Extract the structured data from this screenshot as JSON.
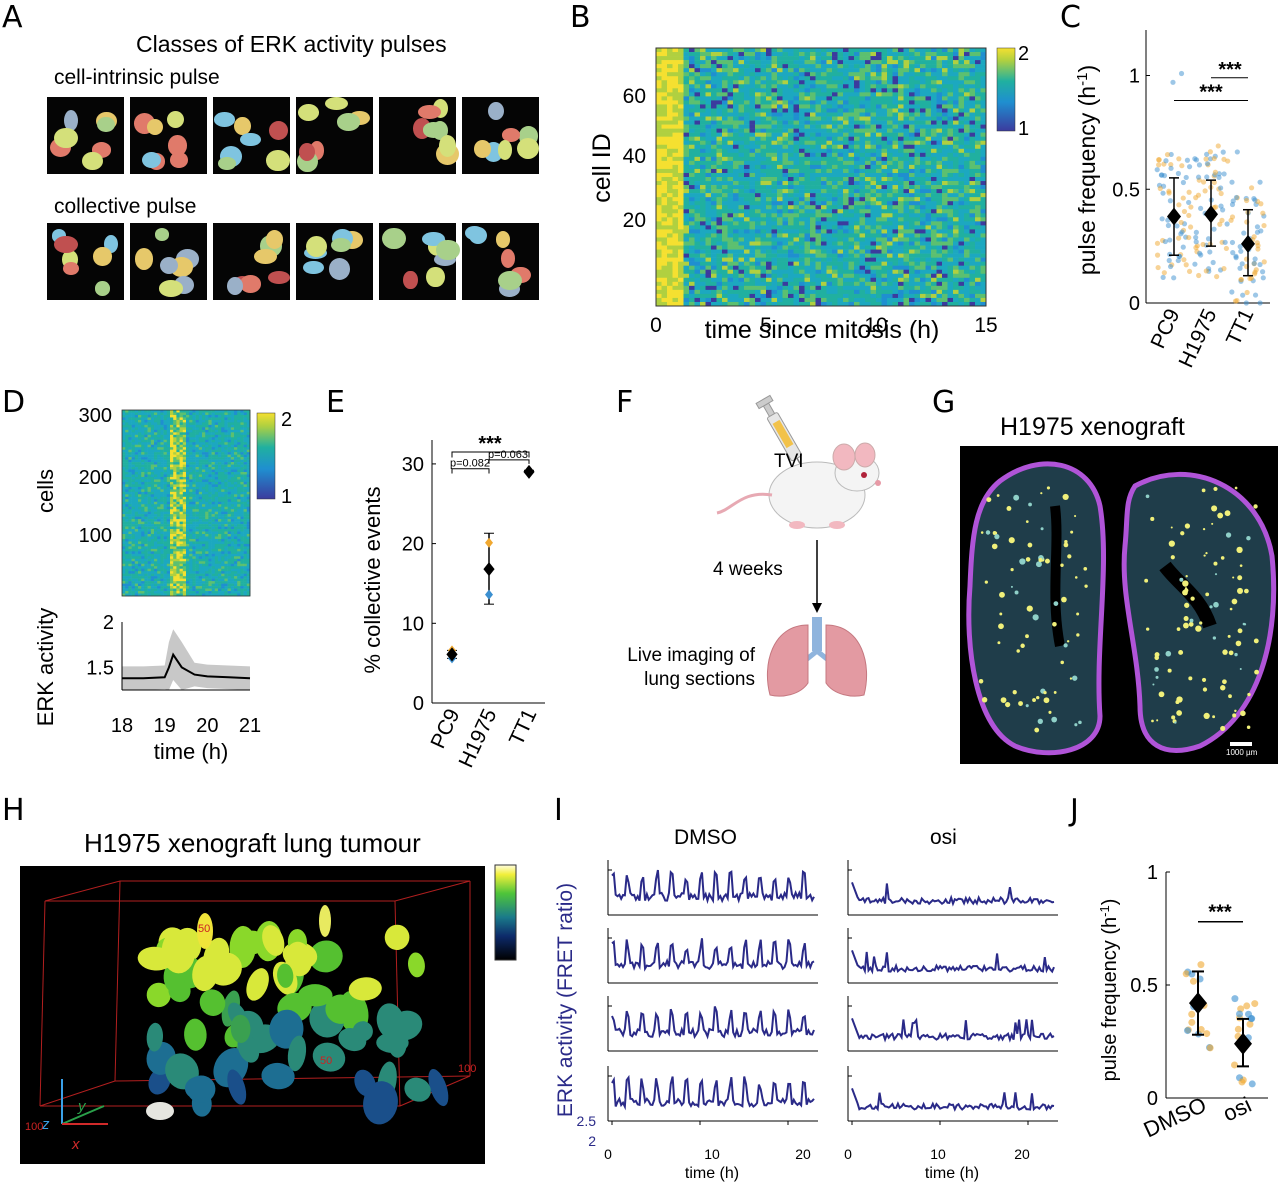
{
  "panels": [
    "A",
    "B",
    "C",
    "D",
    "E",
    "F",
    "G",
    "H",
    "I",
    "J"
  ],
  "panelA": {
    "title": "Classes of ERK activity pulses",
    "row1_label": "cell-intrinsic pulse",
    "row2_label": "collective pulse"
  },
  "panelB": {
    "ylabel": "cell ID",
    "xlabel": "time since mitosis (h)",
    "yticks": [
      "60",
      "40",
      "20"
    ],
    "xticks": [
      "0",
      "5",
      "10",
      "15"
    ],
    "cbar_ticks": [
      "2",
      "1"
    ]
  },
  "panelC": {
    "ylabel": "pulse frequency (h",
    "ylabel_sup": "-1",
    "ylabel_end": ")",
    "yticks": [
      "1",
      "0.5",
      "0"
    ],
    "sig1": "***",
    "sig2": "***"
  },
  "panelD": {
    "ylabel_top": "cells",
    "ylabel_bottom": "ERK activity",
    "xlabel": "time (h)",
    "yticks_top": [
      "300",
      "200",
      "100"
    ],
    "yticks_bottom": [
      "2",
      "1.5"
    ],
    "xticks": [
      "18",
      "19",
      "20",
      "21"
    ],
    "cbar_ticks": [
      "2",
      "1"
    ]
  },
  "panelE": {
    "ylabel": "% collective events",
    "yticks": [
      "30",
      "20",
      "10",
      "0"
    ],
    "p1": "p=0.082",
    "p2": "p=0.063",
    "sig": "***"
  },
  "panelF": {
    "tvi": "TVI",
    "weeks": "4 weeks",
    "live1": "Live imaging of",
    "live2": "lung sections"
  },
  "panelG": {
    "title": "H1975 xenograft",
    "scale": "1000 µm"
  },
  "panelH": {
    "title": "H1975 xenograft lung tumour",
    "tick50a": "50",
    "tick50b": "50",
    "tick100a": "100",
    "tick100b": "100",
    "ax_x": "x",
    "ax_y": "y",
    "ax_z": "z"
  },
  "panelI": {
    "col1": "DMSO",
    "col2": "osi",
    "ylabel": "ERK activity (FRET ratio)",
    "xlabel": "time (h)",
    "yticks": [
      "2.5",
      "2"
    ],
    "xticks": [
      "0",
      "10",
      "20"
    ]
  },
  "panelJ": {
    "ylabel": "pulse frequency (h",
    "ylabel_sup": "-1",
    "ylabel_end": ")",
    "yticks": [
      "1",
      "0.5",
      "0"
    ],
    "sig": "***"
  },
  "shared_categories": [
    "PC9",
    "H1975",
    "TT1"
  ],
  "panelJ_categories": [
    "DMSO",
    "osi"
  ],
  "colors": {
    "orange": "#f0a830",
    "blue": "#3b8fd0",
    "trace": "#2a2a88",
    "red_axis": "#cc2222"
  },
  "chart_data": [
    {
      "panel": "C",
      "type": "scatter",
      "categories": [
        "PC9",
        "H1975",
        "TT1"
      ],
      "series": [
        {
          "name": "mean",
          "values": [
            0.38,
            0.39,
            0.26
          ]
        },
        {
          "name": "sd_low",
          "values": [
            0.21,
            0.25,
            0.12
          ]
        },
        {
          "name": "sd_high",
          "values": [
            0.55,
            0.54,
            0.41
          ]
        }
      ],
      "ylim": [
        0,
        1.2
      ],
      "ylabel": "pulse frequency (h-1)"
    },
    {
      "panel": "D",
      "type": "line",
      "x": [
        18,
        18.5,
        19,
        19.1,
        19.2,
        19.4,
        19.7,
        20,
        20.5,
        21
      ],
      "series": [
        {
          "name": "mean",
          "values": [
            1.38,
            1.38,
            1.39,
            1.5,
            1.64,
            1.5,
            1.42,
            1.4,
            1.39,
            1.38
          ]
        }
      ],
      "xlabel": "time (h)",
      "ylabel": "ERK activity",
      "ylim": [
        1.25,
        2
      ]
    },
    {
      "panel": "E",
      "type": "scatter",
      "categories": [
        "PC9",
        "H1975",
        "TT1"
      ],
      "series": [
        {
          "name": "mean",
          "values": [
            6.1,
            16.8,
            29.0
          ]
        },
        {
          "name": "rep1",
          "values": [
            6.6,
            20.1,
            29.2
          ]
        },
        {
          "name": "rep2",
          "values": [
            5.6,
            13.6,
            29.0
          ]
        },
        {
          "name": "err_low",
          "values": [
            5.6,
            12.4,
            29.0
          ]
        },
        {
          "name": "err_high",
          "values": [
            6.6,
            21.3,
            29.2
          ]
        }
      ],
      "ylim": [
        0,
        33
      ],
      "ylabel": "% collective events"
    },
    {
      "panel": "J",
      "type": "scatter",
      "categories": [
        "DMSO",
        "osi"
      ],
      "series": [
        {
          "name": "mean",
          "values": [
            0.42,
            0.24
          ]
        },
        {
          "name": "sd_low",
          "values": [
            0.28,
            0.14
          ]
        },
        {
          "name": "sd_high",
          "values": [
            0.56,
            0.35
          ]
        }
      ],
      "ylim": [
        0,
        1
      ],
      "ylabel": "pulse frequency (h-1)"
    }
  ]
}
